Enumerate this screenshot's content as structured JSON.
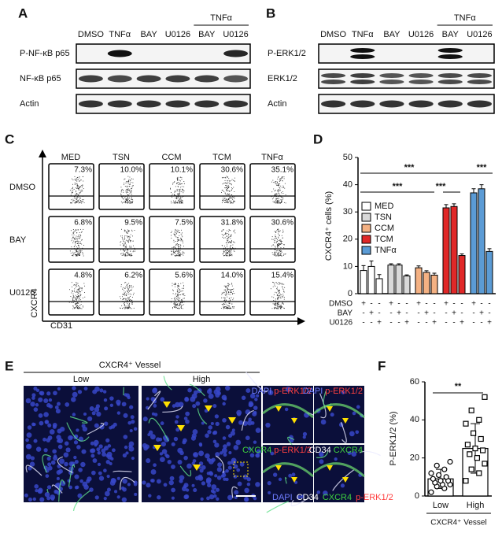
{
  "panels": {
    "A": {
      "label": "A",
      "lanes": [
        "DMSO",
        "TNFα",
        "BAY",
        "U0126",
        "BAY",
        "U0126"
      ],
      "group": "TNFα",
      "rows": [
        "P-NF-κB p65",
        "NF-κB p65",
        "Actin"
      ]
    },
    "B": {
      "label": "B",
      "lanes": [
        "DMSO",
        "TNFα",
        "BAY",
        "U0126",
        "BAY",
        "U0126"
      ],
      "group": "TNFα",
      "rows": [
        "P-ERK1/2",
        "ERK1/2",
        "Actin"
      ]
    },
    "C": {
      "label": "C",
      "columns": [
        "MED",
        "TSN",
        "CCM",
        "TCM",
        "TNFα"
      ],
      "rows": [
        {
          "name": "DMSO",
          "percents": [
            "7.3%",
            "10.0%",
            "10.1%",
            "30.6%",
            "35.1%"
          ]
        },
        {
          "name": "BAY",
          "percents": [
            "6.8%",
            "9.5%",
            "7.5%",
            "31.8%",
            "30.6%"
          ]
        },
        {
          "name": "U0126",
          "percents": [
            "4.8%",
            "6.2%",
            "5.6%",
            "14.0%",
            "15.4%"
          ]
        }
      ],
      "y_axis": "CXCR4",
      "x_axis": "CD31"
    },
    "E": {
      "label": "E",
      "header": "CXCR4⁺ Vessel",
      "columns": [
        "Low",
        "High"
      ],
      "insets": [
        [
          {
            "text": "DAPI",
            "color": "#6f7dff"
          },
          {
            "text": "p-ERK1/2",
            "color": "#ff4040"
          }
        ],
        [
          {
            "text": "DAPI",
            "color": "#6f7dff"
          },
          {
            "text": "p-ERK1/2",
            "color": "#ff4040"
          }
        ],
        [
          {
            "text": "CXCR4",
            "color": "#3ecf3e"
          },
          {
            "text": "p-ERK1/2",
            "color": "#ff4040"
          }
        ],
        [
          {
            "text": "CD34",
            "color": "#ffffff"
          },
          {
            "text": "CXCR4",
            "color": "#3ecf3e"
          }
        ]
      ],
      "legend": [
        {
          "text": "DAPI",
          "color": "#6f7dff"
        },
        {
          "text": "CD34",
          "color": "#ffffff"
        },
        {
          "text": "CXCR4",
          "color": "#3ecf3e"
        },
        {
          "text": "p-ERK1/2",
          "color": "#ff4040"
        }
      ]
    }
  },
  "chart_data": [
    {
      "type": "bar",
      "panel_label": "D",
      "ylabel": "CXCR4⁺ cells (%)",
      "ylim": [
        0,
        50
      ],
      "yticks": [
        0,
        10,
        20,
        30,
        40,
        50
      ],
      "series": [
        {
          "name": "MED",
          "color": "#ffffff",
          "values": [
            8.5,
            10,
            5.5
          ],
          "errors": [
            1.8,
            2,
            1.5
          ]
        },
        {
          "name": "TSN",
          "color": "#d9d9d9",
          "values": [
            10.5,
            10.5,
            6.5
          ],
          "errors": [
            0.5,
            0.5,
            0.4
          ]
        },
        {
          "name": "CCM",
          "color": "#f4b183",
          "values": [
            9.5,
            7.8,
            6.8
          ],
          "errors": [
            0.7,
            0.6,
            0.7
          ]
        },
        {
          "name": "TCM",
          "color": "#e02828",
          "values": [
            31.5,
            32,
            14
          ],
          "errors": [
            1.2,
            1,
            0.6
          ]
        },
        {
          "name": "TNFα",
          "color": "#5b9bd5",
          "values": [
            37,
            38.5,
            15.5
          ],
          "errors": [
            1.5,
            1.5,
            1
          ]
        }
      ],
      "treatments": [
        {
          "name": "DMSO",
          "marks": [
            "+",
            "-",
            "-",
            "+",
            "-",
            "-",
            "+",
            "-",
            "-",
            "+",
            "-",
            "-",
            "+",
            "-",
            "-"
          ]
        },
        {
          "name": "BAY",
          "marks": [
            "-",
            "+",
            "-",
            "-",
            "+",
            "-",
            "-",
            "+",
            "-",
            "-",
            "+",
            "-",
            "-",
            "+",
            "-"
          ]
        },
        {
          "name": "U0126",
          "marks": [
            "-",
            "-",
            "+",
            "-",
            "-",
            "+",
            "-",
            "-",
            "+",
            "-",
            "-",
            "+",
            "-",
            "-",
            "+"
          ]
        }
      ],
      "annotations": [
        "***",
        "***",
        "***",
        "***"
      ]
    },
    {
      "type": "dotbar",
      "panel_label": "F",
      "ylabel": "P-ERK1/2 (%)",
      "xlabel": "CXCR4⁺ Vessel",
      "ylim": [
        0,
        60
      ],
      "yticks": [
        0,
        20,
        40,
        60
      ],
      "categories": [
        "Low",
        "High"
      ],
      "values": [
        9,
        25
      ],
      "errors": [
        5,
        13
      ],
      "points": [
        [
          2,
          4,
          5,
          6,
          6,
          7,
          8,
          8,
          9,
          10,
          11,
          12,
          14,
          16,
          18
        ],
        [
          8,
          12,
          14,
          17,
          20,
          22,
          24,
          25,
          27,
          30,
          33,
          38,
          40,
          45,
          52
        ]
      ],
      "annotation": "**"
    }
  ]
}
